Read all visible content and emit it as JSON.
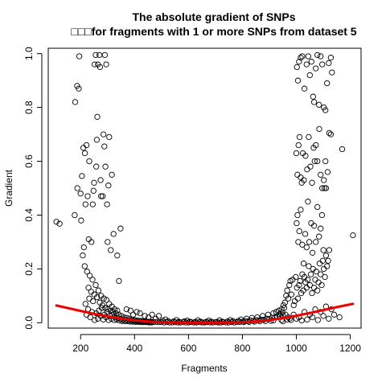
{
  "chart_data": {
    "type": "scatter",
    "title": "The absolute gradient of SNPs",
    "subtitle": "□□□for fragments with 1 or more SNPs from dataset 5",
    "xlabel": "Fragments",
    "ylabel": "Gradient",
    "xlim": [
      80,
      1240
    ],
    "ylim": [
      -0.02,
      1.02
    ],
    "x_ticks": [
      200,
      400,
      600,
      800,
      1000,
      1200
    ],
    "y_ticks": [
      0.0,
      0.2,
      0.4,
      0.6,
      0.8,
      1.0
    ],
    "x_tick_labels": [
      "200",
      "400",
      "600",
      "800",
      "1000",
      "1200"
    ],
    "y_tick_labels": [
      "0.0",
      "0.2",
      "0.4",
      "0.6",
      "0.8",
      "1.0"
    ],
    "grid": false,
    "legend": "none",
    "point_color": "#000000",
    "curve_color": "#ee0000",
    "points": [
      [
        110,
        0.375
      ],
      [
        122,
        0.368
      ],
      [
        178,
        0.4
      ],
      [
        180,
        0.82
      ],
      [
        187,
        0.88
      ],
      [
        188,
        0.5
      ],
      [
        193,
        0.87
      ],
      [
        195,
        0.99
      ],
      [
        200,
        0.48
      ],
      [
        202,
        0.38
      ],
      [
        205,
        0.545
      ],
      [
        210,
        0.65
      ],
      [
        212,
        0.28
      ],
      [
        216,
        0.63
      ],
      [
        222,
        0.66
      ],
      [
        218,
        0.44
      ],
      [
        226,
        0.47
      ],
      [
        230,
        0.31
      ],
      [
        232,
        0.6
      ],
      [
        240,
        0.3
      ],
      [
        245,
        0.44
      ],
      [
        248,
        0.49
      ],
      [
        250,
        0.52
      ],
      [
        252,
        0.96
      ],
      [
        256,
        0.995
      ],
      [
        258,
        0.58
      ],
      [
        260,
        0.68
      ],
      [
        262,
        0.765
      ],
      [
        264,
        0.96
      ],
      [
        270,
        0.995
      ],
      [
        272,
        0.95
      ],
      [
        274,
        0.53
      ],
      [
        276,
        0.47
      ],
      [
        282,
        0.47
      ],
      [
        285,
        0.7
      ],
      [
        288,
        0.655
      ],
      [
        290,
        0.995
      ],
      [
        292,
        0.58
      ],
      [
        295,
        0.96
      ],
      [
        298,
        0.44
      ],
      [
        300,
        0.3
      ],
      [
        303,
        0.51
      ],
      [
        306,
        0.69
      ],
      [
        312,
        0.27
      ],
      [
        316,
        0.55
      ],
      [
        322,
        0.33
      ],
      [
        336,
        0.25
      ],
      [
        342,
        0.155
      ],
      [
        348,
        0.35
      ],
      [
        208,
        0.25
      ],
      [
        215,
        0.21
      ],
      [
        224,
        0.19
      ],
      [
        234,
        0.175
      ],
      [
        244,
        0.16
      ],
      [
        256,
        0.14
      ],
      [
        266,
        0.12
      ],
      [
        276,
        0.1
      ],
      [
        286,
        0.09
      ],
      [
        296,
        0.085
      ],
      [
        306,
        0.07
      ],
      [
        316,
        0.06
      ],
      [
        326,
        0.05
      ],
      [
        336,
        0.045
      ],
      [
        229,
        0.13
      ],
      [
        239,
        0.115
      ],
      [
        251,
        0.105
      ],
      [
        261,
        0.095
      ],
      [
        271,
        0.075
      ],
      [
        281,
        0.065
      ],
      [
        291,
        0.055
      ],
      [
        301,
        0.05
      ],
      [
        311,
        0.045
      ],
      [
        321,
        0.04
      ],
      [
        331,
        0.035
      ],
      [
        341,
        0.03
      ],
      [
        351,
        0.025
      ],
      [
        361,
        0.02
      ],
      [
        371,
        0.018
      ],
      [
        381,
        0.015
      ],
      [
        391,
        0.012
      ],
      [
        401,
        0.01
      ],
      [
        411,
        0.008
      ],
      [
        421,
        0.007
      ],
      [
        431,
        0.006
      ],
      [
        441,
        0.005
      ],
      [
        451,
        0.004
      ],
      [
        461,
        0.004
      ],
      [
        471,
        0.003
      ],
      [
        481,
        0.003
      ],
      [
        491,
        0.002
      ],
      [
        218,
        0.07
      ],
      [
        222,
        0.03
      ],
      [
        228,
        0.05
      ],
      [
        232,
        0.09
      ],
      [
        236,
        0.02
      ],
      [
        242,
        0.04
      ],
      [
        246,
        0.08
      ],
      [
        252,
        0.01
      ],
      [
        258,
        0.035
      ],
      [
        264,
        0.015
      ],
      [
        268,
        0.045
      ],
      [
        274,
        0.025
      ],
      [
        278,
        0.055
      ],
      [
        284,
        0.012
      ],
      [
        288,
        0.03
      ],
      [
        294,
        0.02
      ],
      [
        298,
        0.04
      ],
      [
        304,
        0.01
      ],
      [
        308,
        0.025
      ],
      [
        314,
        0.015
      ],
      [
        318,
        0.03
      ],
      [
        324,
        0.01
      ],
      [
        328,
        0.02
      ],
      [
        334,
        0.012
      ],
      [
        338,
        0.018
      ],
      [
        344,
        0.008
      ],
      [
        348,
        0.014
      ],
      [
        354,
        0.006
      ],
      [
        358,
        0.012
      ],
      [
        364,
        0.005
      ],
      [
        368,
        0.01
      ],
      [
        374,
        0.006
      ],
      [
        378,
        0.008
      ],
      [
        384,
        0.004
      ],
      [
        388,
        0.007
      ],
      [
        394,
        0.004
      ],
      [
        398,
        0.006
      ],
      [
        404,
        0.003
      ],
      [
        408,
        0.005
      ],
      [
        414,
        0.003
      ],
      [
        418,
        0.004
      ],
      [
        424,
        0.002
      ],
      [
        428,
        0.004
      ],
      [
        434,
        0.002
      ],
      [
        438,
        0.003
      ],
      [
        444,
        0.002
      ],
      [
        448,
        0.003
      ],
      [
        454,
        0.001
      ],
      [
        458,
        0.002
      ],
      [
        464,
        0.001
      ],
      [
        408,
        0.04
      ],
      [
        420,
        0.035
      ],
      [
        438,
        0.025
      ],
      [
        452,
        0.02
      ],
      [
        465,
        0.03
      ],
      [
        478,
        0.015
      ],
      [
        490,
        0.025
      ],
      [
        370,
        0.05
      ],
      [
        385,
        0.045
      ],
      [
        395,
        0.03
      ],
      [
        500,
        0.002
      ],
      [
        510,
        0.001
      ],
      [
        520,
        0.002
      ],
      [
        530,
        0.001
      ],
      [
        540,
        0.001
      ],
      [
        550,
        0.002
      ],
      [
        560,
        0.001
      ],
      [
        570,
        0.001
      ],
      [
        580,
        0.002
      ],
      [
        590,
        0.001
      ],
      [
        600,
        0.001
      ],
      [
        610,
        0.002
      ],
      [
        620,
        0.001
      ],
      [
        630,
        0.001
      ],
      [
        640,
        0.002
      ],
      [
        650,
        0.001
      ],
      [
        660,
        0.001
      ],
      [
        670,
        0.002
      ],
      [
        680,
        0.001
      ],
      [
        690,
        0.001
      ],
      [
        700,
        0.002
      ],
      [
        710,
        0.001
      ],
      [
        720,
        0.001
      ],
      [
        730,
        0.002
      ],
      [
        740,
        0.001
      ],
      [
        750,
        0.001
      ],
      [
        760,
        0.002
      ],
      [
        770,
        0.001
      ],
      [
        780,
        0.002
      ],
      [
        790,
        0.003
      ],
      [
        505,
        0.008
      ],
      [
        525,
        0.006
      ],
      [
        545,
        0.005
      ],
      [
        565,
        0.004
      ],
      [
        585,
        0.005
      ],
      [
        605,
        0.004
      ],
      [
        625,
        0.003
      ],
      [
        645,
        0.004
      ],
      [
        665,
        0.003
      ],
      [
        685,
        0.004
      ],
      [
        705,
        0.003
      ],
      [
        725,
        0.004
      ],
      [
        745,
        0.005
      ],
      [
        765,
        0.006
      ],
      [
        785,
        0.007
      ],
      [
        515,
        0.012
      ],
      [
        555,
        0.01
      ],
      [
        595,
        0.008
      ],
      [
        635,
        0.009
      ],
      [
        675,
        0.008
      ],
      [
        715,
        0.009
      ],
      [
        755,
        0.01
      ],
      [
        795,
        0.012
      ],
      [
        800,
        0.004
      ],
      [
        810,
        0.006
      ],
      [
        820,
        0.005
      ],
      [
        830,
        0.008
      ],
      [
        840,
        0.007
      ],
      [
        850,
        0.01
      ],
      [
        860,
        0.009
      ],
      [
        870,
        0.012
      ],
      [
        880,
        0.011
      ],
      [
        890,
        0.015
      ],
      [
        900,
        0.014
      ],
      [
        910,
        0.018
      ],
      [
        920,
        0.02
      ],
      [
        930,
        0.022
      ],
      [
        940,
        0.025
      ],
      [
        950,
        0.028
      ],
      [
        960,
        0.03
      ],
      [
        815,
        0.015
      ],
      [
        835,
        0.018
      ],
      [
        855,
        0.02
      ],
      [
        875,
        0.025
      ],
      [
        895,
        0.03
      ],
      [
        915,
        0.035
      ],
      [
        925,
        0.04
      ],
      [
        935,
        0.045
      ],
      [
        945,
        0.05
      ],
      [
        955,
        0.055
      ],
      [
        805,
        0.002
      ],
      [
        825,
        0.003
      ],
      [
        845,
        0.004
      ],
      [
        865,
        0.005
      ],
      [
        885,
        0.006
      ],
      [
        905,
        0.007
      ],
      [
        915,
        0.008
      ],
      [
        945,
        0.01
      ],
      [
        965,
        0.012
      ],
      [
        975,
        0.015
      ],
      [
        938,
        0.032
      ],
      [
        948,
        0.038
      ],
      [
        952,
        0.065
      ],
      [
        958,
        0.075
      ],
      [
        962,
        0.1
      ],
      [
        966,
        0.12
      ],
      [
        970,
        0.09
      ],
      [
        974,
        0.14
      ],
      [
        978,
        0.155
      ],
      [
        982,
        0.105
      ],
      [
        986,
        0.16
      ],
      [
        990,
        0.065
      ],
      [
        994,
        0.08
      ],
      [
        998,
        0.17
      ],
      [
        1002,
        0.13
      ],
      [
        1006,
        0.09
      ],
      [
        1010,
        0.14
      ],
      [
        1014,
        0.155
      ],
      [
        1018,
        0.11
      ],
      [
        1022,
        0.18
      ],
      [
        1026,
        0.12
      ],
      [
        1030,
        0.17
      ],
      [
        1034,
        0.15
      ],
      [
        1038,
        0.13
      ],
      [
        1042,
        0.16
      ],
      [
        1046,
        0.21
      ],
      [
        1050,
        0.14
      ],
      [
        1054,
        0.18
      ],
      [
        1058,
        0.11
      ],
      [
        1062,
        0.2
      ],
      [
        1066,
        0.13
      ],
      [
        1070,
        0.16
      ],
      [
        1074,
        0.19
      ],
      [
        1078,
        0.12
      ],
      [
        1082,
        0.15
      ],
      [
        1086,
        0.22
      ],
      [
        1090,
        0.18
      ],
      [
        1094,
        0.14
      ],
      [
        1098,
        0.23
      ],
      [
        1102,
        0.2
      ],
      [
        1106,
        0.17
      ],
      [
        1110,
        0.25
      ],
      [
        1114,
        0.21
      ],
      [
        1118,
        0.23
      ],
      [
        1122,
        0.27
      ],
      [
        950,
        0.005
      ],
      [
        970,
        0.02
      ],
      [
        990,
        0.03
      ],
      [
        1010,
        0.02
      ],
      [
        1030,
        0.04
      ],
      [
        1050,
        0.03
      ],
      [
        1070,
        0.05
      ],
      [
        1090,
        0.04
      ],
      [
        1110,
        0.06
      ],
      [
        1130,
        0.05
      ],
      [
        980,
        0.01
      ],
      [
        1000,
        0.015
      ],
      [
        1020,
        0.008
      ],
      [
        1040,
        0.012
      ],
      [
        1060,
        0.02
      ],
      [
        1080,
        0.01
      ],
      [
        1100,
        0.025
      ],
      [
        1120,
        0.015
      ],
      [
        1140,
        0.03
      ],
      [
        1160,
        0.02
      ],
      [
        1001,
        0.37
      ],
      [
        1004,
        0.4
      ],
      [
        1007,
        0.3
      ],
      [
        1011,
        0.34
      ],
      [
        1016,
        0.42
      ],
      [
        1022,
        0.29
      ],
      [
        1027,
        0.22
      ],
      [
        1033,
        0.33
      ],
      [
        1038,
        0.28
      ],
      [
        1043,
        0.45
      ],
      [
        1048,
        0.3
      ],
      [
        1055,
        0.37
      ],
      [
        1060,
        0.26
      ],
      [
        1066,
        0.36
      ],
      [
        1072,
        0.3
      ],
      [
        1078,
        0.43
      ],
      [
        1084,
        0.32
      ],
      [
        1090,
        0.35
      ],
      [
        1095,
        0.4
      ],
      [
        1100,
        0.27
      ],
      [
        1104,
        0.5
      ],
      [
        1108,
        0.6
      ],
      [
        1000,
        0.63
      ],
      [
        1004,
        0.55
      ],
      [
        1008,
        0.66
      ],
      [
        1012,
        0.69
      ],
      [
        1016,
        0.54
      ],
      [
        1020,
        0.52
      ],
      [
        1024,
        0.63
      ],
      [
        1028,
        0.53
      ],
      [
        1034,
        0.62
      ],
      [
        1040,
        0.57
      ],
      [
        1046,
        0.69
      ],
      [
        1052,
        0.58
      ],
      [
        1058,
        0.52
      ],
      [
        1064,
        0.65
      ],
      [
        1068,
        0.6
      ],
      [
        1072,
        0.66
      ],
      [
        1078,
        0.6
      ],
      [
        1085,
        0.72
      ],
      [
        1090,
        0.55
      ],
      [
        1096,
        0.5
      ],
      [
        1102,
        0.53
      ],
      [
        1110,
        0.5
      ],
      [
        1116,
        0.56
      ],
      [
        1122,
        0.705
      ],
      [
        1128,
        0.7
      ],
      [
        1170,
        0.645
      ],
      [
        1210,
        0.325
      ],
      [
        1002,
        0.95
      ],
      [
        1006,
        0.9
      ],
      [
        1010,
        0.97
      ],
      [
        1016,
        0.985
      ],
      [
        1022,
        0.99
      ],
      [
        1030,
        0.87
      ],
      [
        1038,
        0.96
      ],
      [
        1044,
        0.99
      ],
      [
        1050,
        0.92
      ],
      [
        1056,
        0.97
      ],
      [
        1062,
        0.84
      ],
      [
        1066,
        0.82
      ],
      [
        1072,
        0.945
      ],
      [
        1078,
        0.995
      ],
      [
        1084,
        0.81
      ],
      [
        1090,
        0.99
      ],
      [
        1096,
        0.96
      ],
      [
        1102,
        0.8
      ],
      [
        1108,
        0.79
      ],
      [
        1114,
        0.89
      ],
      [
        1120,
        0.965
      ],
      [
        1128,
        0.985
      ],
      [
        1132,
        0.93
      ]
    ],
    "curve": [
      [
        110,
        0.064
      ],
      [
        160,
        0.053
      ],
      [
        200,
        0.044
      ],
      [
        250,
        0.033
      ],
      [
        300,
        0.024
      ],
      [
        350,
        0.016
      ],
      [
        400,
        0.009
      ],
      [
        450,
        0.0045
      ],
      [
        500,
        0.0018
      ],
      [
        550,
        0.0005
      ],
      [
        600,
        0.0
      ],
      [
        650,
        0.0
      ],
      [
        700,
        0.0
      ],
      [
        750,
        0.0005
      ],
      [
        800,
        0.002
      ],
      [
        850,
        0.005
      ],
      [
        900,
        0.01
      ],
      [
        950,
        0.017
      ],
      [
        1000,
        0.026
      ],
      [
        1050,
        0.036
      ],
      [
        1100,
        0.047
      ],
      [
        1150,
        0.058
      ],
      [
        1210,
        0.07
      ]
    ]
  }
}
